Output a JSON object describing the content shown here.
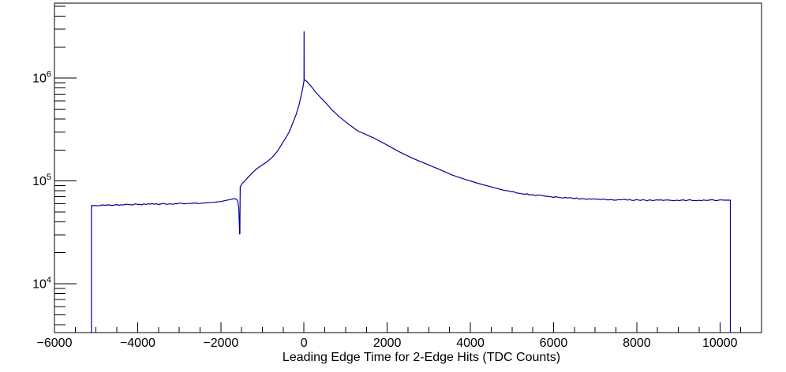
{
  "window": {
    "background": "#ffffff"
  },
  "chart_data": {
    "type": "line",
    "subtype": "histogram-step-outline",
    "title": "",
    "xlabel": "Leading Edge Time for 2-Edge Hits (TDC Counts)",
    "ylabel": "",
    "x_range": [
      -6000,
      11000
    ],
    "y_range": [
      3350,
      5350000
    ],
    "y_scale": "log",
    "grid": false,
    "legend": "none",
    "line_color": "#000099",
    "axis_color": "#000000",
    "background_color": "#ffffff",
    "x_ticks": [
      {
        "value": -6000,
        "label": "−6000"
      },
      {
        "value": -4000,
        "label": "−4000"
      },
      {
        "value": -2000,
        "label": "−2000"
      },
      {
        "value": 0,
        "label": "0"
      },
      {
        "value": 2000,
        "label": "2000"
      },
      {
        "value": 4000,
        "label": "4000"
      },
      {
        "value": 6000,
        "label": "6000"
      },
      {
        "value": 8000,
        "label": "8000"
      },
      {
        "value": 10000,
        "label": "10000"
      }
    ],
    "x_minor_step": 500,
    "y_ticks": [
      {
        "value": 10000,
        "base": "10",
        "exp": "4"
      },
      {
        "value": 100000,
        "base": "10",
        "exp": "5"
      },
      {
        "value": 1000000,
        "base": "10",
        "exp": "6"
      }
    ],
    "y_minor_mantissas": [
      2,
      3,
      4,
      5,
      6,
      7,
      8,
      9
    ],
    "features": {
      "left_edge_x": -5110,
      "left_plateau_counts": 58000,
      "notch_dip": {
        "x": -1545,
        "counts": 30500
      },
      "peak": {
        "x": 0,
        "counts": 950000
      },
      "spike": {
        "x": 0,
        "counts": 2830000
      },
      "right_plateau_counts": 65000,
      "right_edge_x": 10250
    },
    "points": [
      [
        -5110,
        3350
      ],
      [
        -5110,
        57500
      ],
      [
        -4800,
        58000
      ],
      [
        -4400,
        58600
      ],
      [
        -4000,
        59000
      ],
      [
        -3600,
        59300
      ],
      [
        -3200,
        59700
      ],
      [
        -2800,
        60200
      ],
      [
        -2400,
        61100
      ],
      [
        -2200,
        61800
      ],
      [
        -2000,
        63000
      ],
      [
        -1900,
        64300
      ],
      [
        -1800,
        65600
      ],
      [
        -1720,
        66800
      ],
      [
        -1672,
        67200
      ],
      [
        -1620,
        66000
      ],
      [
        -1590,
        63000
      ],
      [
        -1570,
        55000
      ],
      [
        -1555,
        38000
      ],
      [
        -1548,
        30500
      ],
      [
        -1542,
        30500
      ],
      [
        -1538,
        60000
      ],
      [
        -1534,
        87500
      ],
      [
        -1480,
        95000
      ],
      [
        -1420,
        100000
      ],
      [
        -1350,
        108000
      ],
      [
        -1250,
        119000
      ],
      [
        -1150,
        130000
      ],
      [
        -1050,
        139000
      ],
      [
        -950,
        147500
      ],
      [
        -850,
        158000
      ],
      [
        -750,
        172000
      ],
      [
        -650,
        192000
      ],
      [
        -550,
        222000
      ],
      [
        -450,
        258000
      ],
      [
        -350,
        302000
      ],
      [
        -270,
        365000
      ],
      [
        -190,
        442000
      ],
      [
        -120,
        545000
      ],
      [
        -60,
        700000
      ],
      [
        -25,
        820000
      ],
      [
        -5,
        920000
      ],
      [
        0,
        950000
      ],
      [
        2,
        2830000
      ],
      [
        4,
        960000
      ],
      [
        40,
        950000
      ],
      [
        90,
        905000
      ],
      [
        185,
        820000
      ],
      [
        280,
        730000
      ],
      [
        400,
        645000
      ],
      [
        530,
        570000
      ],
      [
        660,
        495000
      ],
      [
        850,
        420000
      ],
      [
        1040,
        365000
      ],
      [
        1290,
        307000
      ],
      [
        1670,
        262000
      ],
      [
        1990,
        224000
      ],
      [
        2310,
        190000
      ],
      [
        2610,
        166000
      ],
      [
        2940,
        146000
      ],
      [
        3260,
        129000
      ],
      [
        3560,
        114000
      ],
      [
        3890,
        103000
      ],
      [
        4210,
        94000
      ],
      [
        4550,
        86500
      ],
      [
        4830,
        80500
      ],
      [
        5160,
        76000
      ],
      [
        5460,
        73500
      ],
      [
        5780,
        71000
      ],
      [
        6110,
        69300
      ],
      [
        6730,
        67000
      ],
      [
        7400,
        65800
      ],
      [
        8200,
        65000
      ],
      [
        8800,
        64800
      ],
      [
        9500,
        64800
      ],
      [
        10100,
        64900
      ],
      [
        10250,
        64900
      ],
      [
        10250,
        3350
      ]
    ]
  }
}
